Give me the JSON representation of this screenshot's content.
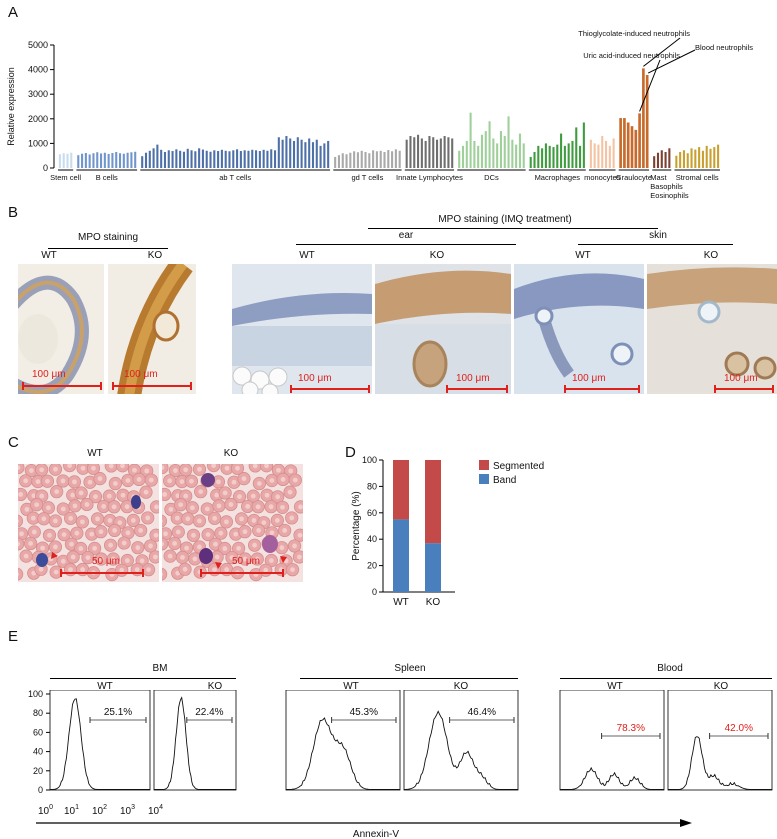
{
  "panels": {
    "a": "A",
    "b": "B",
    "c": "C",
    "d": "D",
    "e": "E"
  },
  "colors": {
    "scale_red": "#e0201b",
    "segmented": "#c44a4a",
    "band": "#4a7fbd"
  },
  "panel_b": {
    "mpo_title": "MPO staining",
    "imq_title": "MPO staining   (IMQ treatment)",
    "ear": "ear",
    "skin": "skin",
    "wt": "WT",
    "ko": "KO",
    "scale": "100 μm"
  },
  "panel_c": {
    "wt": "WT",
    "ko": "KO",
    "scale": "50 μm"
  },
  "panel_e": {
    "bm": "BM",
    "spleen": "Spleen",
    "blood": "Blood",
    "wt": "WT",
    "ko": "KO",
    "gates": [
      "25.1%",
      "22.4%",
      "45.3%",
      "46.4%",
      "78.3%",
      "42.0%"
    ],
    "gate_colors": [
      "#111111",
      "#111111",
      "#111111",
      "#111111",
      "#e0201b",
      "#e0201b"
    ],
    "xaxis_label": "Annexin-V",
    "yticks": [
      "0",
      "20",
      "40",
      "60",
      "80",
      "100"
    ],
    "xticks_base": [
      "10",
      "10",
      "10",
      "10",
      "10"
    ],
    "xticks_exp": [
      "0",
      "1",
      "2",
      "3",
      "4"
    ]
  },
  "chart_data": [
    {
      "type": "bar",
      "panel": "A",
      "ylabel": "Relative expression",
      "ylim": [
        0,
        5000
      ],
      "yticks": [
        0,
        1000,
        2000,
        3000,
        4000,
        5000
      ],
      "groups": [
        {
          "label": "Stem cell",
          "color": "#c8dcef",
          "values": [
            560,
            600,
            580,
            620
          ]
        },
        {
          "label": "B cells",
          "color": "#6f95cc",
          "values": [
            520,
            580,
            610,
            550,
            600,
            640,
            590,
            620,
            570,
            610,
            650,
            600,
            580,
            620,
            640,
            660
          ]
        },
        {
          "label": "ab T cells",
          "color": "#4d70a8",
          "values": [
            480,
            620,
            700,
            800,
            950,
            740,
            650,
            720,
            690,
            760,
            700,
            660,
            780,
            720,
            680,
            800,
            750,
            700,
            660,
            720,
            690,
            740,
            700,
            680,
            720,
            760,
            690,
            720,
            700,
            740,
            720,
            690,
            740,
            700,
            760,
            720,
            1250,
            1150,
            1300,
            1200,
            1100,
            1250,
            1150,
            1050,
            1200,
            1050,
            1150,
            900,
            1000,
            1100
          ]
        },
        {
          "label": "gd T cells",
          "color": "#a9a9a9",
          "values": [
            450,
            520,
            600,
            560,
            620,
            680,
            640,
            700,
            650,
            600,
            720,
            680,
            700,
            650,
            730,
            680,
            760,
            700
          ]
        },
        {
          "label": "Innate Lymphocytes",
          "color": "#6e6e6e",
          "values": [
            1150,
            1300,
            1250,
            1350,
            1200,
            1100,
            1300,
            1250,
            1150,
            1200,
            1300,
            1250,
            1200
          ]
        },
        {
          "label": "DCs",
          "color": "#9fd09a",
          "values": [
            700,
            900,
            1100,
            2250,
            1100,
            900,
            1350,
            1500,
            1900,
            1200,
            1000,
            1500,
            1300,
            2100,
            1150,
            950,
            1400,
            1000
          ]
        },
        {
          "label": "Macrophages",
          "color": "#3e9c3e",
          "values": [
            450,
            650,
            900,
            800,
            1000,
            900,
            850,
            950,
            1400,
            900,
            1000,
            1100,
            1650,
            900,
            1850
          ]
        },
        {
          "label": "monocytes",
          "color": "#f3c3a2",
          "values": [
            1150,
            1000,
            950,
            1300,
            1100,
            900,
            1200
          ]
        },
        {
          "label": "Graulocyte",
          "color": "#c86a2a",
          "values": [
            2030,
            2030,
            1850,
            1700,
            1550,
            2220,
            4050,
            3780
          ]
        },
        {
          "label": "Mast Basophils Eosinophils",
          "color": "#7a4030",
          "values": [
            480,
            620,
            720,
            650,
            800
          ]
        },
        {
          "label": "Stromal cells",
          "color": "#c8a030",
          "values": [
            500,
            650,
            720,
            600,
            800,
            750,
            850,
            700,
            900,
            780,
            850,
            950
          ]
        }
      ],
      "annotations": [
        "Thioglycolate-induced neutrophils",
        "Uric acid-induced neutrophils",
        "Blood neutrophils"
      ]
    },
    {
      "type": "bar",
      "panel": "D",
      "stacked": true,
      "categories": [
        "WT",
        "KO"
      ],
      "series": [
        {
          "name": "Segmented",
          "values": [
            45,
            63
          ]
        },
        {
          "name": "Band",
          "values": [
            55,
            37
          ]
        }
      ],
      "ylabel": "Percentage (%)",
      "ylim": [
        0,
        100
      ],
      "yticks": [
        0,
        20,
        40,
        60,
        80,
        100
      ],
      "legend": "right"
    }
  ]
}
